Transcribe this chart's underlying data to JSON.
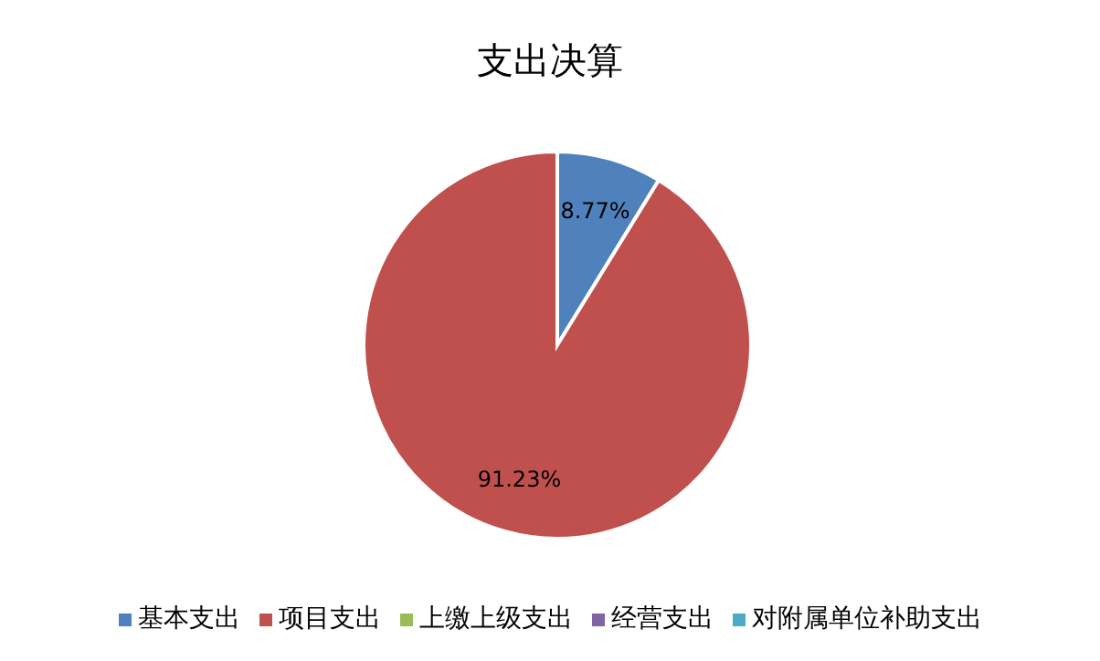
{
  "chart_data": {
    "type": "pie",
    "title": "支出决算",
    "categories": [
      "基本支出",
      "项目支出",
      "上缴上级支出",
      "经营支出",
      "对附属单位补助支出"
    ],
    "values": [
      8.77,
      91.23,
      0,
      0,
      0
    ],
    "value_labels": [
      "8.77%",
      "91.23%",
      null,
      null,
      null
    ],
    "colors": [
      "#4f81bd",
      "#c0504d",
      "#9bbb59",
      "#8064a2",
      "#4bacc6"
    ],
    "legend": "bottom"
  }
}
